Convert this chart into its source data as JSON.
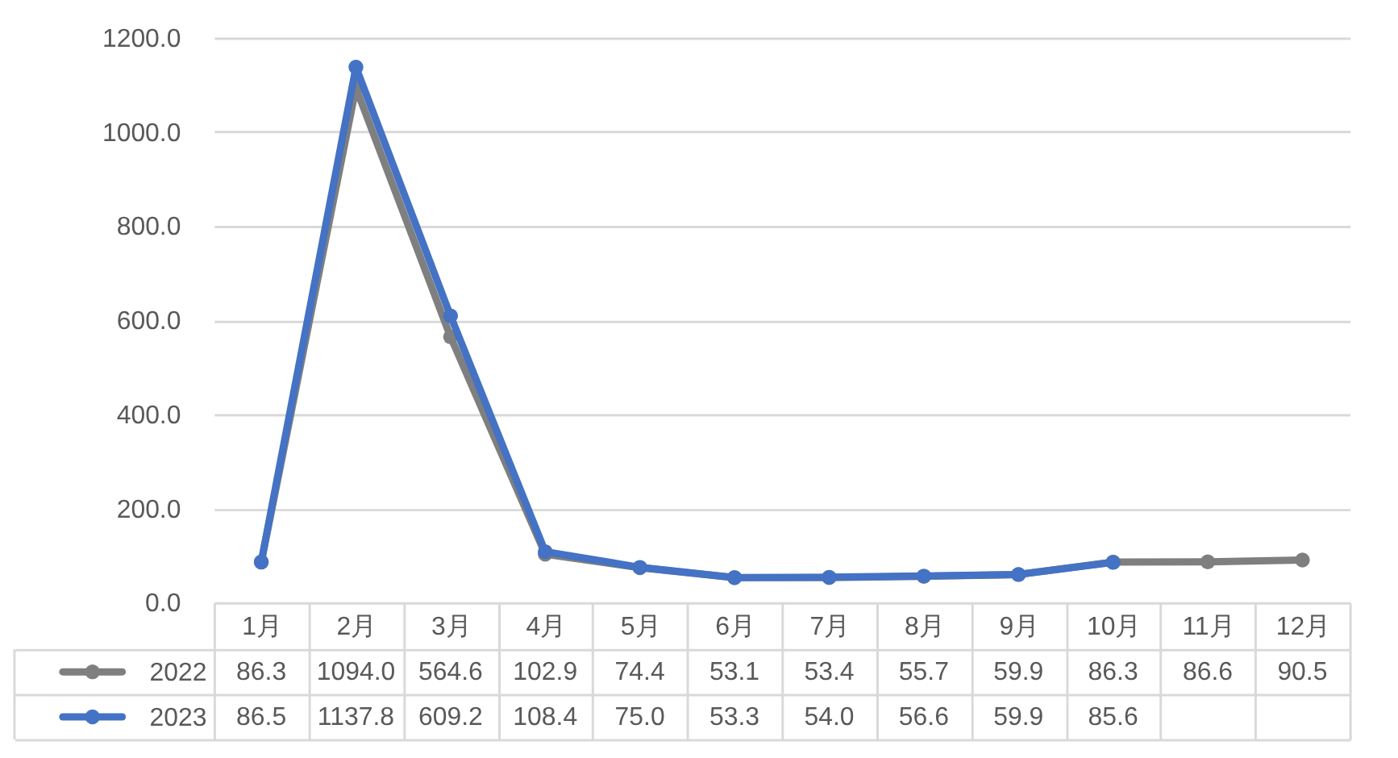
{
  "chart_data": {
    "type": "line",
    "categories": [
      "1月",
      "2月",
      "3月",
      "4月",
      "5月",
      "6月",
      "7月",
      "8月",
      "9月",
      "10月",
      "11月",
      "12月"
    ],
    "series": [
      {
        "name": "2022",
        "color": "#7f7f7f",
        "values": [
          86.3,
          1094.0,
          564.6,
          102.9,
          74.4,
          53.1,
          53.4,
          55.7,
          59.9,
          86.3,
          86.6,
          90.5
        ],
        "value_labels": [
          "86.3",
          "1094.0",
          "564.6",
          "102.9",
          "74.4",
          "53.1",
          "53.4",
          "55.7",
          "59.9",
          "86.3",
          "86.6",
          "90.5"
        ]
      },
      {
        "name": "2023",
        "color": "#4472c4",
        "values": [
          86.5,
          1137.8,
          609.2,
          108.4,
          75.0,
          53.3,
          54.0,
          56.6,
          59.9,
          85.6,
          null,
          null
        ],
        "value_labels": [
          "86.5",
          "1137.8",
          "609.2",
          "108.4",
          "75.0",
          "53.3",
          "54.0",
          "56.6",
          "59.9",
          "85.6",
          null,
          null
        ]
      }
    ],
    "ylim": [
      0,
      1200
    ],
    "yticks": [
      {
        "value": 0,
        "label": "0.0"
      },
      {
        "value": 200,
        "label": "200.0"
      },
      {
        "value": 400,
        "label": "400.0"
      },
      {
        "value": 600,
        "label": "600.0"
      },
      {
        "value": 800,
        "label": "800.0"
      },
      {
        "value": 1000,
        "label": "1000.0"
      },
      {
        "value": 1200,
        "label": "1200.0"
      }
    ],
    "grid": "y",
    "legend": "bottom left",
    "marker": "circle",
    "line_style": "solid"
  }
}
